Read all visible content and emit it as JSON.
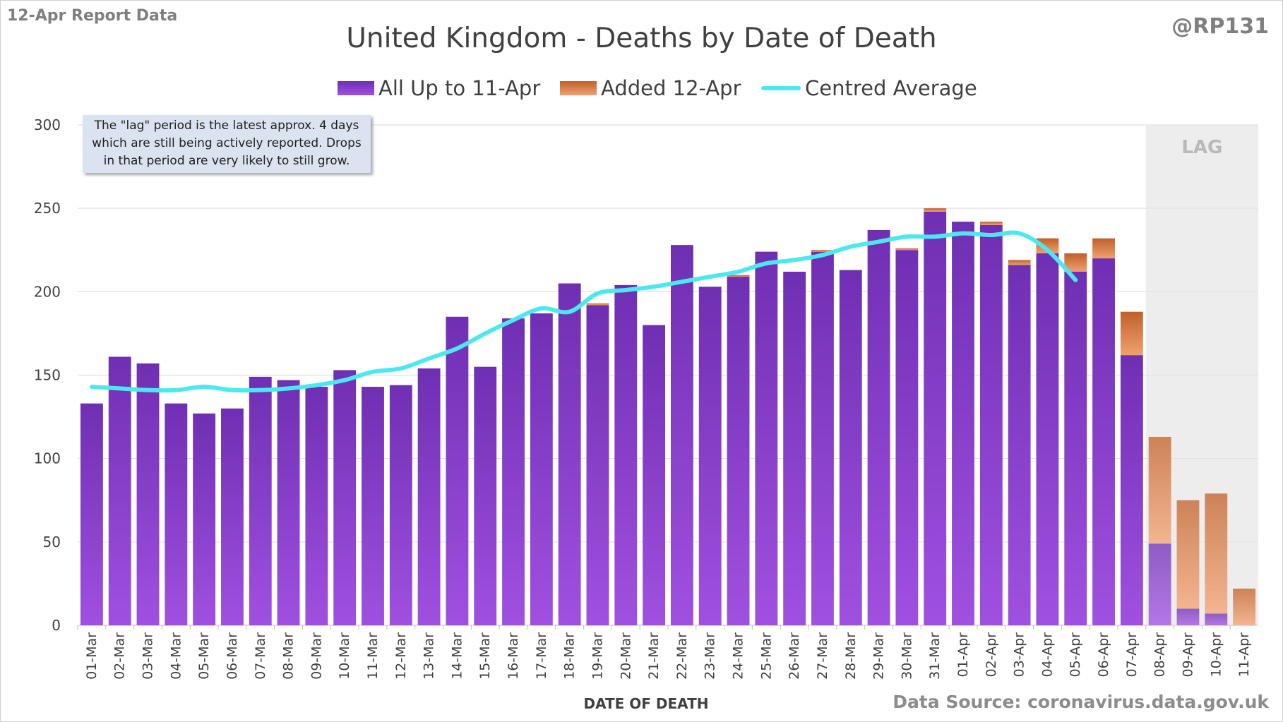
{
  "header": {
    "report_label": "12-Apr Report Data",
    "handle": "@RP131",
    "source": "Data Source: coronavirus.data.gov.uk"
  },
  "note": {
    "line1": "The \"lag\" period is the latest approx. 4 days",
    "line2": "which are still being actively reported.  Drops",
    "line3": "in that period are very likely to still grow."
  },
  "colors": {
    "all_top": "#6f2fb3",
    "all_bottom": "#a050e0",
    "added_top": "#c0602a",
    "added_bottom": "#f0a070",
    "average": "#4de8ef",
    "lag_bg": "#e8e8e8"
  },
  "chart_data": {
    "type": "bar",
    "stacked": true,
    "title": "United Kingdom - Deaths by Date of Death",
    "xlabel": "DATE OF DEATH",
    "ylabel": "",
    "ylim": [
      0,
      300
    ],
    "yticks": [
      0,
      50,
      100,
      150,
      200,
      250,
      300
    ],
    "grid": true,
    "legend_position": "top-center",
    "lag_label": "LAG",
    "lag_categories": [
      "08-Apr",
      "09-Apr",
      "10-Apr",
      "11-Apr"
    ],
    "categories": [
      "01-Mar",
      "02-Mar",
      "03-Mar",
      "04-Mar",
      "05-Mar",
      "06-Mar",
      "07-Mar",
      "08-Mar",
      "09-Mar",
      "10-Mar",
      "11-Mar",
      "12-Mar",
      "13-Mar",
      "14-Mar",
      "15-Mar",
      "16-Mar",
      "17-Mar",
      "18-Mar",
      "19-Mar",
      "20-Mar",
      "21-Mar",
      "22-Mar",
      "23-Mar",
      "24-Mar",
      "25-Mar",
      "26-Mar",
      "27-Mar",
      "28-Mar",
      "29-Mar",
      "30-Mar",
      "31-Mar",
      "01-Apr",
      "02-Apr",
      "03-Apr",
      "04-Apr",
      "05-Apr",
      "06-Apr",
      "07-Apr",
      "08-Apr",
      "09-Apr",
      "10-Apr",
      "11-Apr"
    ],
    "series": [
      {
        "name": "All Up to 11-Apr",
        "kind": "bar",
        "values": [
          133,
          161,
          157,
          133,
          127,
          130,
          149,
          147,
          143,
          153,
          143,
          144,
          154,
          185,
          155,
          184,
          187,
          205,
          192,
          204,
          180,
          228,
          203,
          209,
          224,
          212,
          224,
          213,
          237,
          225,
          248,
          242,
          240,
          216,
          223,
          212,
          220,
          162,
          49,
          10,
          7,
          0
        ]
      },
      {
        "name": "Added 12-Apr",
        "kind": "bar",
        "values": [
          0,
          0,
          0,
          0,
          0,
          0,
          0,
          0,
          0,
          0,
          0,
          0,
          0,
          0,
          0,
          0,
          0,
          0,
          1,
          0,
          0,
          0,
          0,
          1,
          0,
          0,
          1,
          0,
          0,
          1,
          2,
          0,
          2,
          3,
          9,
          11,
          12,
          26,
          64,
          65,
          72,
          22
        ]
      },
      {
        "name": "Centred Average",
        "kind": "line",
        "values": [
          143,
          142,
          141,
          141,
          143,
          141,
          141,
          142,
          144,
          147,
          152,
          154,
          160,
          166,
          175,
          183,
          190,
          188,
          199,
          201,
          203,
          206,
          209,
          212,
          217,
          219,
          222,
          227,
          230,
          233,
          233,
          235,
          234,
          235,
          225,
          207,
          null,
          null,
          null,
          null,
          null,
          null
        ]
      }
    ]
  }
}
